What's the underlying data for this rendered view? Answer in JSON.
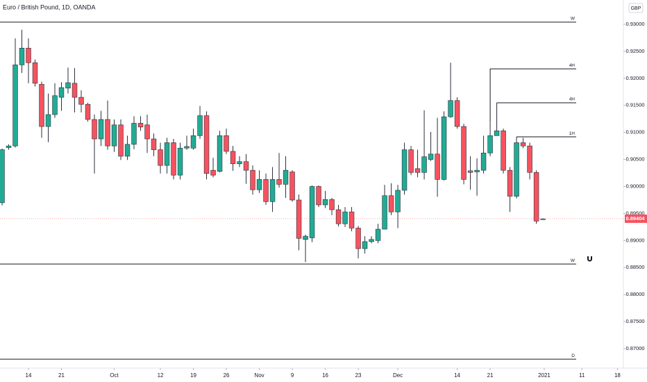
{
  "chart_data": {
    "type": "candlestick",
    "title": "Euro / British Pound, 1D, OANDA",
    "currency": "GBP",
    "up_color": "#22ab94",
    "down_color": "#f7525f",
    "wick_color": "#2a2e39",
    "open": [
      0.897,
      0.9072,
      0.9075,
      0.9225,
      0.9256,
      0.9229,
      0.9189,
      0.9111,
      0.9133,
      0.9165,
      0.9182,
      0.9191,
      0.9165,
      0.9152,
      0.9124,
      0.9088,
      0.9124,
      0.9075,
      0.9114,
      0.9056,
      0.9078,
      0.9117,
      0.9114,
      0.9088,
      0.9068,
      0.9039,
      0.9081,
      0.9021,
      0.9071,
      0.9071,
      0.9094,
      0.9131,
      0.903,
      0.9028,
      0.9094,
      0.9065,
      0.9042,
      0.9046,
      0.903,
      0.8994,
      0.9013,
      0.8972,
      0.9013,
      0.9004,
      0.9027,
      0.8975,
      0.8902,
      0.8905,
      0.9,
      0.8966,
      0.8976,
      0.8957,
      0.8931,
      0.8953,
      0.8923,
      0.8885,
      0.8898,
      0.89,
      0.8921,
      0.8983,
      0.8953,
      0.8993,
      0.9068,
      0.9033,
      0.9026,
      0.905,
      0.906,
      0.9013,
      0.9129,
      0.9159,
      0.9111,
      0.9029,
      0.9027,
      0.903,
      0.9062,
      0.9094,
      0.9103,
      0.903,
      0.8982,
      0.9081,
      0.9075,
      0.9026,
      0.894
    ],
    "high": [
      0.907,
      0.9078,
      0.9274,
      0.929,
      0.9274,
      0.9235,
      0.9194,
      0.9172,
      0.9191,
      0.9193,
      0.922,
      0.9219,
      0.9178,
      0.9155,
      0.9133,
      0.914,
      0.9159,
      0.9124,
      0.9124,
      0.9094,
      0.913,
      0.913,
      0.9133,
      0.9098,
      0.9081,
      0.909,
      0.9088,
      0.9081,
      0.9094,
      0.9107,
      0.9149,
      0.9139,
      0.9053,
      0.9103,
      0.9107,
      0.9075,
      0.9056,
      0.906,
      0.9039,
      0.903,
      0.9024,
      0.9036,
      0.9062,
      0.9056,
      0.903,
      0.8985,
      0.8911,
      0.9002,
      0.9002,
      0.8992,
      0.8979,
      0.8966,
      0.8962,
      0.8962,
      0.8927,
      0.8908,
      0.8908,
      0.8931,
      0.9003,
      0.9006,
      0.9003,
      0.9081,
      0.9075,
      0.9068,
      0.9141,
      0.9101,
      0.9127,
      0.9139,
      0.9229,
      0.9165,
      0.9116,
      0.9056,
      0.9052,
      0.9094,
      0.912,
      0.9155,
      0.9107,
      0.9036,
      0.909,
      0.909,
      0.9081,
      0.903,
      0.8941
    ],
    "low": [
      0.8965,
      0.9068,
      0.9072,
      0.921,
      0.9191,
      0.9185,
      0.909,
      0.9082,
      0.9127,
      0.914,
      0.9172,
      0.9137,
      0.9137,
      0.912,
      0.9024,
      0.9075,
      0.9068,
      0.9064,
      0.9049,
      0.9049,
      0.9069,
      0.9103,
      0.9062,
      0.9056,
      0.9024,
      0.9024,
      0.9013,
      0.9013,
      0.9068,
      0.9068,
      0.9088,
      0.9013,
      0.9017,
      0.9026,
      0.906,
      0.9029,
      0.9036,
      0.9005,
      0.8985,
      0.8988,
      0.8966,
      0.8953,
      0.8998,
      0.8979,
      0.8972,
      0.8882,
      0.886,
      0.8897,
      0.8962,
      0.896,
      0.8947,
      0.8926,
      0.8925,
      0.8917,
      0.8867,
      0.8876,
      0.8895,
      0.8895,
      0.8921,
      0.8947,
      0.8923,
      0.8985,
      0.9021,
      0.9017,
      0.9013,
      0.9047,
      0.8981,
      0.9011,
      0.9127,
      0.9107,
      0.9004,
      0.8994,
      0.8983,
      0.9024,
      0.9056,
      0.9094,
      0.9024,
      0.8953,
      0.8978,
      0.9071,
      0.9013,
      0.8931,
      0.8939
    ],
    "close": [
      0.9068,
      0.9075,
      0.9225,
      0.9256,
      0.9229,
      0.9191,
      0.9111,
      0.9133,
      0.9168,
      0.9183,
      0.9192,
      0.9165,
      0.9152,
      0.9124,
      0.9088,
      0.9124,
      0.9075,
      0.9114,
      0.9056,
      0.9078,
      0.9117,
      0.911,
      0.9088,
      0.9068,
      0.9039,
      0.9081,
      0.9021,
      0.9071,
      0.9074,
      0.9094,
      0.9131,
      0.9024,
      0.9021,
      0.9094,
      0.9065,
      0.9042,
      0.9046,
      0.903,
      0.8994,
      0.9013,
      0.8972,
      0.9013,
      0.9004,
      0.903,
      0.8975,
      0.8904,
      0.8908,
      0.9,
      0.8966,
      0.8976,
      0.8957,
      0.8931,
      0.8953,
      0.8923,
      0.8885,
      0.8898,
      0.8902,
      0.8921,
      0.8983,
      0.8953,
      0.8993,
      0.9068,
      0.9026,
      0.9026,
      0.9055,
      0.906,
      0.9013,
      0.9129,
      0.9159,
      0.9111,
      0.9013,
      0.9026,
      0.903,
      0.9062,
      0.9094,
      0.9103,
      0.903,
      0.8982,
      0.9081,
      0.9075,
      0.9026,
      0.8936,
      0.894
    ],
    "xlim": [
      -0.316,
      94.2
    ],
    "xticks": [
      {
        "value": 4,
        "label": "14"
      },
      {
        "value": 9,
        "label": "21"
      },
      {
        "value": 17,
        "label": "Oct"
      },
      {
        "value": 24,
        "label": "12"
      },
      {
        "value": 29,
        "label": "19"
      },
      {
        "value": 34,
        "label": "26"
      },
      {
        "value": 39,
        "label": "Nov"
      },
      {
        "value": 44,
        "label": "9"
      },
      {
        "value": 49,
        "label": "16"
      },
      {
        "value": 54,
        "label": "23"
      },
      {
        "value": 60,
        "label": "Dec"
      },
      {
        "value": 69,
        "label": "14"
      },
      {
        "value": 74,
        "label": "21"
      },
      {
        "value": 82.2,
        "label": "2021"
      },
      {
        "value": 87.9,
        "label": "11"
      },
      {
        "value": 93.3,
        "label": "18"
      }
    ],
    "ylim": [
      0.8664,
      0.9345
    ],
    "yticks": [
      {
        "value": 0.93,
        "label": "0.93000"
      },
      {
        "value": 0.925,
        "label": "0.92500"
      },
      {
        "value": 0.92,
        "label": "0.92000"
      },
      {
        "value": 0.915,
        "label": "0.91500"
      },
      {
        "value": 0.91,
        "label": "0.91000"
      },
      {
        "value": 0.905,
        "label": "0.90500"
      },
      {
        "value": 0.9,
        "label": "0.90000"
      },
      {
        "value": 0.895,
        "label": "0.89500"
      },
      {
        "value": 0.89,
        "label": "0.89000"
      },
      {
        "value": 0.885,
        "label": "0.88500"
      },
      {
        "value": 0.88,
        "label": "0.88000"
      },
      {
        "value": 0.875,
        "label": "0.87500"
      },
      {
        "value": 0.87,
        "label": "0.87000"
      }
    ],
    "levels": [
      {
        "label": "W",
        "value": 0.9304
      },
      {
        "label": "W",
        "value": 0.88566
      },
      {
        "label": "D",
        "value": 0.86805
      },
      {
        "label": "4H",
        "value": 0.92177,
        "start": 74
      },
      {
        "label": "4H",
        "value": 0.91548,
        "start": 75
      },
      {
        "label": "1H",
        "value": 0.90918,
        "start": 78
      }
    ],
    "last_price": 0.89404
  }
}
